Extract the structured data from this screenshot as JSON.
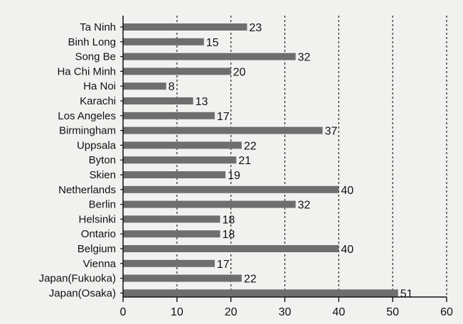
{
  "chart_data": {
    "type": "bar",
    "orientation": "horizontal",
    "title": "",
    "xlabel": "",
    "ylabel": "",
    "categories": [
      "Ta Ninh",
      "Binh Long",
      "Song Be",
      "Ha Chi Minh",
      "Ha Noi",
      "Karachi",
      "Los Angeles",
      "Birmingham",
      "Uppsala",
      "Byton",
      "Skien",
      "Netherlands",
      "Berlin",
      "Helsinki",
      "Ontario",
      "Belgium",
      "Vienna",
      "Japan(Fukuoka)",
      "Japan(Osaka)"
    ],
    "values": [
      23,
      15,
      32,
      20,
      8,
      13,
      17,
      37,
      22,
      21,
      19,
      40,
      32,
      18,
      18,
      40,
      17,
      22,
      51
    ],
    "xlim": [
      0,
      60
    ],
    "xticks": [
      0,
      10,
      20,
      30,
      40,
      50,
      60
    ],
    "grid": "dashed vertical gridlines",
    "bar_color": "#6e6e6e",
    "data_labels": true
  }
}
